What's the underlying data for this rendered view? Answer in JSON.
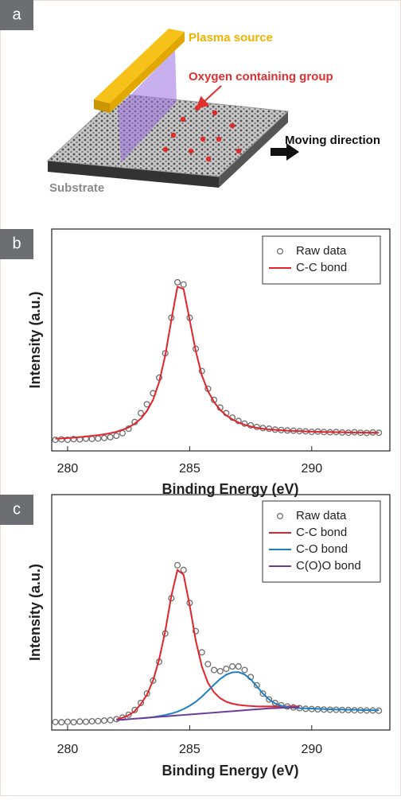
{
  "panel_labels": [
    "a",
    "b",
    "c"
  ],
  "diagram": {
    "plasma_source": "Plasma source",
    "oxygen_group": "Oxygen containing group",
    "moving_direction": "Moving direction",
    "substrate": "Substrate"
  },
  "chart_data": [
    {
      "type": "line",
      "xlabel": "Binding Energy (eV)",
      "ylabel": "Intensity (a.u.)",
      "x": [
        279.5,
        279.75,
        280,
        280.25,
        280.5,
        280.75,
        281,
        281.25,
        281.5,
        281.75,
        282,
        282.25,
        282.5,
        282.75,
        283,
        283.25,
        283.5,
        283.75,
        284,
        284.25,
        284.5,
        284.75,
        285,
        285.25,
        285.5,
        285.75,
        286,
        286.25,
        286.5,
        286.75,
        287,
        287.25,
        287.5,
        287.75,
        288,
        288.25,
        288.5,
        288.75,
        289,
        289.25,
        289.5,
        289.75,
        290,
        290.25,
        290.5,
        290.75,
        291,
        291.25,
        291.5,
        291.75,
        292,
        292.25,
        292.5,
        292.75
      ],
      "xlim": [
        279.35,
        293.2
      ],
      "xticks": [
        280,
        285,
        290
      ],
      "ylim": [
        0,
        100
      ],
      "legend": "upper right",
      "series": [
        {
          "name": "Raw data",
          "color": "#6e6e6e",
          "marker": "circle",
          "values": [
            5,
            5.2,
            5,
            5.3,
            5.2,
            5.5,
            5.4,
            5.6,
            5.8,
            6.2,
            6.8,
            8,
            10,
            13,
            17,
            21,
            26,
            33,
            44,
            60,
            76,
            75,
            60,
            46,
            36,
            28,
            23,
            19.5,
            17,
            15,
            13.5,
            12.3,
            11.5,
            10.8,
            10.3,
            10,
            9.6,
            9.4,
            9.2,
            9.1,
            8.9,
            8.8,
            8.6,
            8.7,
            8.5,
            8.4,
            8.5,
            8.3,
            8.2,
            8.4,
            8.2,
            8.1,
            8.3,
            8.2
          ]
        },
        {
          "name": "C-C bond",
          "color": "#e3242b",
          "values": [
            5.5,
            5.6,
            5.8,
            6,
            6.2,
            6.5,
            6.8,
            7.1,
            7.5,
            8,
            8.6,
            9.5,
            10.6,
            12.3,
            14.5,
            18,
            23,
            31,
            43,
            59,
            74,
            73,
            59,
            45,
            34,
            27,
            22,
            18.5,
            16,
            14.2,
            12.8,
            11.8,
            11,
            10.4,
            10,
            9.7,
            9.5,
            9.3,
            9.1,
            9,
            8.9,
            8.8,
            8.7,
            8.6,
            8.5,
            8.5,
            8.4,
            8.4,
            8.3,
            8.3,
            8.3,
            8.2,
            8.2,
            8.2
          ]
        }
      ]
    },
    {
      "type": "line",
      "xlabel": "Binding Energy (eV)",
      "ylabel": "Intensity (a.u.)",
      "x": [
        279.5,
        279.75,
        280,
        280.25,
        280.5,
        280.75,
        281,
        281.25,
        281.5,
        281.75,
        282,
        282.25,
        282.5,
        282.75,
        283,
        283.25,
        283.5,
        283.75,
        284,
        284.25,
        284.5,
        284.75,
        285,
        285.25,
        285.5,
        285.75,
        286,
        286.25,
        286.5,
        286.75,
        287,
        287.25,
        287.5,
        287.75,
        288,
        288.25,
        288.5,
        288.75,
        289,
        289.25,
        289.5,
        289.75,
        290,
        290.25,
        290.5,
        290.75,
        291,
        291.25,
        291.5,
        291.75,
        292,
        292.25,
        292.5,
        292.75
      ],
      "xlim": [
        279.35,
        293.2
      ],
      "xticks": [
        280,
        285,
        290
      ],
      "ylim": [
        0,
        100
      ],
      "legend": "upper right",
      "series": [
        {
          "name": "Raw data",
          "color": "#6e6e6e",
          "marker": "circle",
          "values": [
            3.4,
            3.3,
            3.5,
            3.3,
            3.6,
            3.5,
            3.7,
            3.8,
            4,
            4.2,
            4.6,
            5.3,
            6.5,
            8.5,
            11.5,
            15.5,
            21,
            29,
            41,
            56,
            70,
            68,
            54,
            42,
            33,
            28,
            25.5,
            25,
            26,
            27,
            27,
            25.5,
            22.5,
            19,
            15.5,
            13,
            11.5,
            10.5,
            10,
            9.6,
            9.3,
            9,
            8.9,
            8.8,
            8.7,
            8.6,
            8.6,
            8.5,
            8.5,
            8.4,
            8.4,
            8.3,
            8.3,
            8.2
          ]
        },
        {
          "name": "C-C bond",
          "color": "#e3242b",
          "values": [
            null,
            null,
            null,
            null,
            null,
            null,
            null,
            null,
            null,
            null,
            4.5,
            5.2,
            6.3,
            8,
            11,
            15,
            21,
            30,
            42,
            57,
            68,
            66,
            53,
            38,
            27,
            20,
            16,
            13.5,
            12,
            11.2,
            10.7,
            10.4,
            10.2,
            10,
            10,
            10,
            10,
            10,
            10,
            10,
            10,
            null,
            null,
            null,
            null,
            null,
            null,
            null,
            null,
            null,
            null,
            null,
            null,
            null
          ]
        },
        {
          "name": "C-O bond",
          "color": "#1f7fc4",
          "values": [
            null,
            null,
            null,
            null,
            null,
            null,
            null,
            null,
            null,
            null,
            null,
            null,
            null,
            null,
            5,
            5.2,
            5.5,
            5.9,
            6.4,
            7,
            7.8,
            8.9,
            10.3,
            12,
            14.2,
            16.7,
            19.3,
            21.7,
            23.5,
            24.5,
            24.6,
            23.6,
            21.5,
            18.6,
            15.5,
            13,
            11.3,
            10.3,
            9.8,
            9.5,
            9.3,
            9.2,
            9.1,
            9,
            8.9,
            8.8,
            8.7,
            8.7,
            8.6,
            8.6,
            8.5,
            8.5,
            8.4,
            8.4
          ]
        },
        {
          "name": "C(O)O bond",
          "color": "#6a3d9a",
          "values": [
            null,
            null,
            null,
            null,
            null,
            null,
            null,
            null,
            null,
            null,
            4.2,
            4.4,
            4.6,
            4.8,
            5,
            5.2,
            5.4,
            5.6,
            5.8,
            6,
            6.2,
            6.4,
            6.6,
            6.8,
            7,
            7.2,
            7.4,
            7.6,
            7.8,
            8,
            8.2,
            8.4,
            8.6,
            8.8,
            9,
            9.2,
            9.3,
            9.4,
            9.5,
            9.6,
            9.7,
            null,
            null,
            null,
            null,
            null,
            null,
            null,
            null,
            null,
            null,
            null,
            null,
            null
          ]
        }
      ]
    }
  ]
}
